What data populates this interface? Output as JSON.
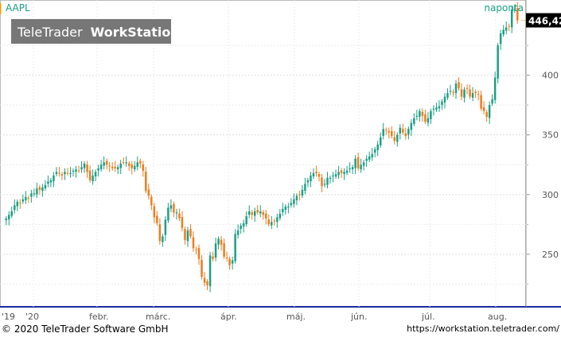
{
  "chart_data": {
    "type": "candlestick",
    "symbol": "AAPL",
    "period": "naponta",
    "watermark": {
      "part1": "TeleTrader",
      "part2": "WorkStation"
    },
    "last_price": "446,42",
    "y_ticks": [
      250,
      300,
      350,
      400
    ],
    "ylim": [
      206,
      463
    ],
    "x_labels": [
      "'19",
      "'20",
      "febr.",
      "márc.",
      "ápr.",
      "máj.",
      "jún.",
      "júl.",
      "aug."
    ],
    "grid": true,
    "grid_style": "dotted",
    "colors": {
      "up": "#1a9e84",
      "down": "#f07a1a",
      "accent": "#f5a000",
      "last_bg": "#000000",
      "last_text": "#ffffff",
      "axis_bottom": "#1a2a9e"
    },
    "closes": [
      280,
      283,
      286,
      291,
      294,
      293,
      296,
      298,
      297,
      301,
      301,
      305,
      304,
      306,
      308,
      311,
      312,
      316,
      319,
      318,
      316,
      319,
      318,
      318,
      320,
      321,
      320,
      323,
      326,
      319,
      312,
      316,
      319,
      322,
      325,
      327,
      325,
      324,
      322,
      322,
      323,
      326,
      327,
      327,
      324,
      322,
      324,
      327,
      326,
      320,
      303,
      299,
      291,
      281,
      276,
      261,
      265,
      279,
      289,
      291,
      285,
      285,
      280,
      272,
      262,
      270,
      265,
      255,
      254,
      246,
      231,
      226,
      224,
      249,
      246,
      259,
      263,
      258,
      248,
      247,
      241,
      245,
      267,
      270,
      274,
      276,
      282,
      286,
      283,
      286,
      285,
      286,
      283,
      280,
      275,
      277,
      278,
      281,
      284,
      288,
      290,
      290,
      293,
      296,
      299,
      300,
      304,
      309,
      312,
      316,
      318,
      318,
      315,
      307,
      309,
      314,
      314,
      316,
      317,
      319,
      318,
      319,
      320,
      322,
      323,
      330,
      322,
      325,
      327,
      330,
      332,
      334,
      338,
      342,
      348,
      355,
      354,
      352,
      349,
      345,
      350,
      356,
      352,
      349,
      355,
      360,
      364,
      366,
      370,
      366,
      361,
      364,
      370,
      372,
      373,
      374,
      378,
      382,
      385,
      387,
      386,
      393,
      389,
      382,
      388,
      389,
      382,
      385,
      385,
      384,
      372,
      370,
      365,
      375,
      380,
      398,
      425,
      435,
      438,
      440,
      441,
      455,
      455,
      446
    ]
  },
  "footer": {
    "copyright": "© 2020 TeleTrader Software GmbH",
    "url": "https://workstation.teletrader.com/"
  }
}
